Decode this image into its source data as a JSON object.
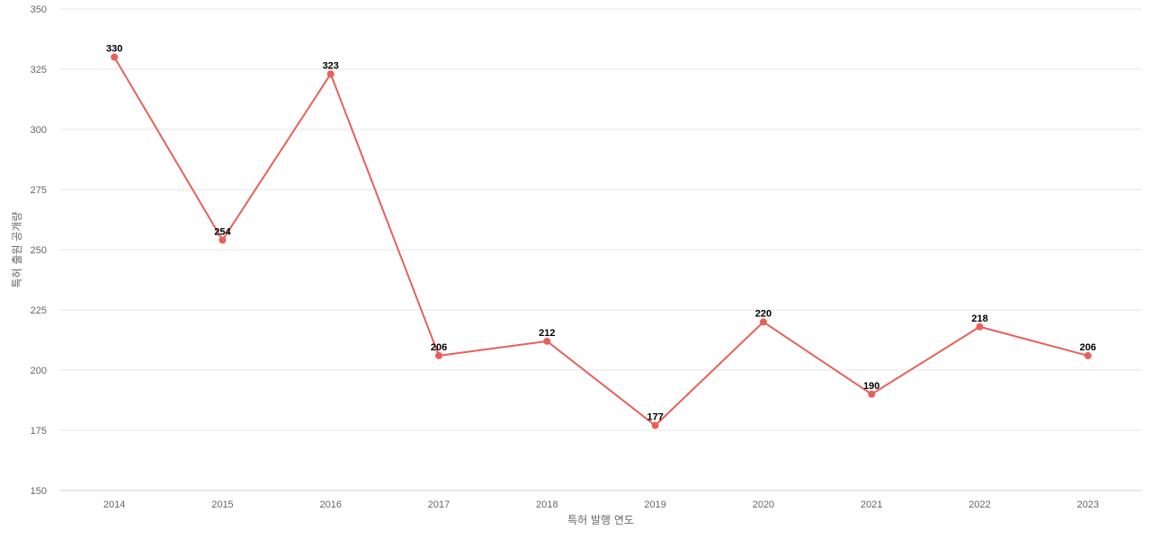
{
  "chart_data": {
    "type": "line",
    "title": "",
    "xlabel": "특허 발행 연도",
    "ylabel": "특허 출원 공개량",
    "x": [
      "2014",
      "2015",
      "2016",
      "2017",
      "2018",
      "2019",
      "2020",
      "2021",
      "2022",
      "2023"
    ],
    "series": [
      {
        "values": [
          330,
          254,
          323,
          206,
          212,
          177,
          220,
          190,
          218,
          206
        ],
        "color": "#e8605a"
      }
    ],
    "ylim": [
      150,
      350
    ],
    "yticks": [
      150,
      175,
      200,
      225,
      250,
      275,
      300,
      325,
      350
    ],
    "grid": true,
    "legend": "none",
    "data_labels": true
  }
}
